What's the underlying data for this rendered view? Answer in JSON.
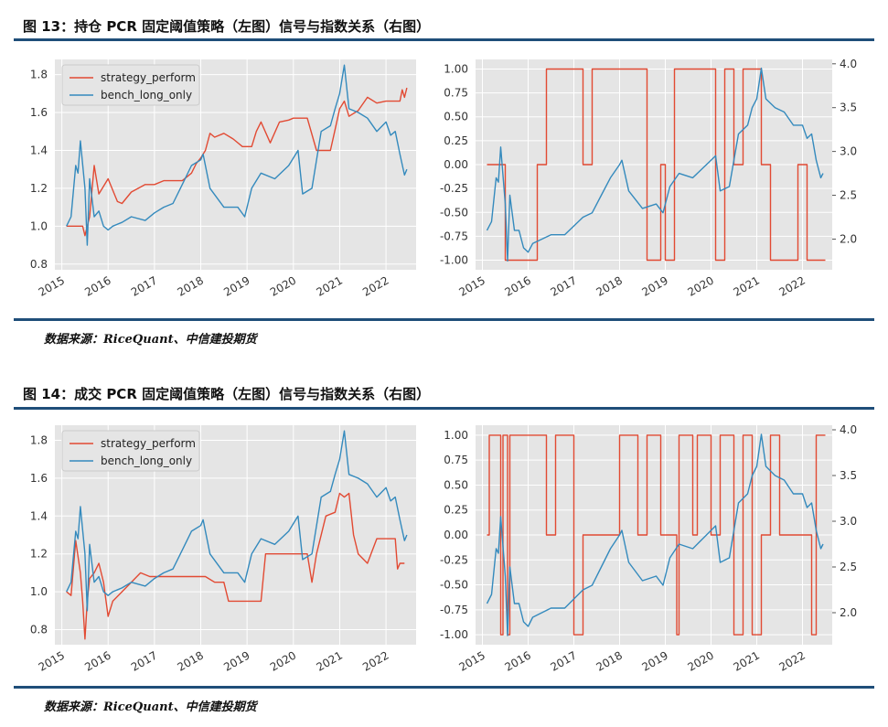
{
  "figures": [
    {
      "title": "图 13：持仓 PCR 固定阈值策略（左图）信号与指数关系（右图）",
      "source": "数据来源：RiceQuant、中信建投期货"
    },
    {
      "title": "图 14：成交 PCR 固定阈值策略（左图）信号与指数关系（右图）",
      "source": "数据来源：RiceQuant、中信建投期货"
    }
  ],
  "colors": {
    "strategy": "#e24a33",
    "bench": "#348abd",
    "signal": "#e24a33",
    "index": "#348abd",
    "panel": "#e5e5e5",
    "rule": "#1f4e79"
  },
  "chart_data": [
    {
      "type": "line",
      "xlabel": "",
      "ylabel": "",
      "xlim": [
        2014.85,
        2022.65
      ],
      "ylim": [
        0.77,
        1.88
      ],
      "xticks": [
        "2015",
        "2016",
        "2017",
        "2018",
        "2019",
        "2020",
        "2021",
        "2022"
      ],
      "yticks": [
        "0.8",
        "1.0",
        "1.2",
        "1.4",
        "1.6",
        "1.8"
      ],
      "grid": true,
      "legend": "top-left",
      "series": [
        {
          "name": "strategy_perform",
          "x": [
            2015.1,
            2015.2,
            2015.3,
            2015.4,
            2015.45,
            2015.5,
            2015.55,
            2015.6,
            2015.7,
            2015.8,
            2016.0,
            2016.2,
            2016.3,
            2016.5,
            2016.8,
            2017.0,
            2017.2,
            2017.4,
            2017.6,
            2017.8,
            2017.9,
            2018.0,
            2018.1,
            2018.2,
            2018.3,
            2018.5,
            2018.7,
            2018.9,
            2019.0,
            2019.1,
            2019.2,
            2019.3,
            2019.5,
            2019.7,
            2019.9,
            2020.0,
            2020.2,
            2020.3,
            2020.5,
            2020.8,
            2020.9,
            2021.0,
            2021.1,
            2021.2,
            2021.4,
            2021.6,
            2021.8,
            2022.0,
            2022.2,
            2022.3,
            2022.35,
            2022.4,
            2022.45
          ],
          "y": [
            1.0,
            1.0,
            1.0,
            1.0,
            1.0,
            0.95,
            1.0,
            1.05,
            1.32,
            1.17,
            1.25,
            1.13,
            1.12,
            1.18,
            1.22,
            1.22,
            1.24,
            1.24,
            1.24,
            1.28,
            1.33,
            1.36,
            1.4,
            1.49,
            1.47,
            1.49,
            1.46,
            1.42,
            1.42,
            1.42,
            1.5,
            1.55,
            1.44,
            1.55,
            1.56,
            1.57,
            1.57,
            1.57,
            1.4,
            1.4,
            1.51,
            1.62,
            1.66,
            1.58,
            1.61,
            1.68,
            1.65,
            1.66,
            1.66,
            1.66,
            1.72,
            1.68,
            1.73
          ]
        },
        {
          "name": "bench_long_only",
          "x": [
            2015.1,
            2015.2,
            2015.3,
            2015.35,
            2015.4,
            2015.5,
            2015.55,
            2015.6,
            2015.7,
            2015.8,
            2015.9,
            2016.0,
            2016.1,
            2016.3,
            2016.5,
            2016.8,
            2017.0,
            2017.2,
            2017.4,
            2017.6,
            2017.8,
            2018.0,
            2018.05,
            2018.2,
            2018.5,
            2018.8,
            2018.95,
            2019.1,
            2019.3,
            2019.6,
            2019.9,
            2020.1,
            2020.2,
            2020.4,
            2020.6,
            2020.8,
            2020.9,
            2021.0,
            2021.1,
            2021.2,
            2021.4,
            2021.6,
            2021.8,
            2022.0,
            2022.1,
            2022.2,
            2022.3,
            2022.4,
            2022.45
          ],
          "y": [
            1.0,
            1.05,
            1.32,
            1.28,
            1.45,
            1.2,
            0.9,
            1.25,
            1.05,
            1.08,
            1.0,
            0.98,
            1.0,
            1.02,
            1.05,
            1.03,
            1.07,
            1.1,
            1.12,
            1.22,
            1.32,
            1.35,
            1.38,
            1.2,
            1.1,
            1.1,
            1.05,
            1.2,
            1.28,
            1.25,
            1.32,
            1.4,
            1.17,
            1.2,
            1.5,
            1.53,
            1.62,
            1.7,
            1.85,
            1.62,
            1.6,
            1.57,
            1.5,
            1.55,
            1.48,
            1.5,
            1.38,
            1.27,
            1.3
          ]
        }
      ]
    },
    {
      "type": "line",
      "xlabel": "",
      "ylabel": "",
      "xlim": [
        2014.85,
        2022.65
      ],
      "ylim_left": [
        -1.1,
        1.1
      ],
      "ylim_right": [
        1.65,
        4.05
      ],
      "xticks": [
        "2015",
        "2016",
        "2017",
        "2018",
        "2019",
        "2020",
        "2021",
        "2022"
      ],
      "yticks_left": [
        "1.00",
        "0.75",
        "0.50",
        "0.25",
        "0.00",
        "-0.25",
        "-0.50",
        "-0.75",
        "-1.00"
      ],
      "yticks_right": [
        "4.0",
        "3.5",
        "3.0",
        "2.5",
        "2.0"
      ],
      "grid": true,
      "legend": "none",
      "series": [
        {
          "axis": "left",
          "x": [
            2015.1,
            2015.2,
            2015.4,
            2015.5,
            2015.6,
            2015.8,
            2016.0,
            2016.1,
            2016.2,
            2016.4,
            2016.6,
            2016.8,
            2017.0,
            2017.2,
            2017.4,
            2017.6,
            2017.8,
            2018.0,
            2018.2,
            2018.4,
            2018.6,
            2018.9,
            2019.0,
            2019.2,
            2019.4,
            2019.6,
            2019.8,
            2020.0,
            2020.1,
            2020.3,
            2020.5,
            2020.7,
            2020.9,
            2021.1,
            2021.3,
            2021.5,
            2021.7,
            2021.9,
            2022.1,
            2022.3,
            2022.5
          ],
          "y": [
            0.0,
            0.0,
            0.0,
            -1.0,
            -1.0,
            -1.0,
            -1.0,
            -1.0,
            0.0,
            1.0,
            1.0,
            1.0,
            1.0,
            0.0,
            1.0,
            1.0,
            1.0,
            1.0,
            1.0,
            1.0,
            -1.0,
            0.0,
            -1.0,
            1.0,
            1.0,
            1.0,
            1.0,
            1.0,
            -1.0,
            1.0,
            0.0,
            1.0,
            1.0,
            0.0,
            -1.0,
            -1.0,
            -1.0,
            0.0,
            -1.0,
            -1.0,
            -1.0
          ]
        },
        {
          "axis": "right",
          "x": [
            2015.1,
            2015.2,
            2015.3,
            2015.35,
            2015.4,
            2015.5,
            2015.55,
            2015.6,
            2015.7,
            2015.8,
            2015.9,
            2016.0,
            2016.1,
            2016.3,
            2016.5,
            2016.8,
            2017.0,
            2017.2,
            2017.4,
            2017.6,
            2017.8,
            2018.0,
            2018.05,
            2018.2,
            2018.5,
            2018.8,
            2018.95,
            2019.1,
            2019.3,
            2019.6,
            2019.9,
            2020.1,
            2020.2,
            2020.4,
            2020.6,
            2020.8,
            2020.9,
            2021.0,
            2021.1,
            2021.2,
            2021.4,
            2021.6,
            2021.8,
            2022.0,
            2022.1,
            2022.2,
            2022.3,
            2022.4,
            2022.45
          ],
          "y": [
            2.1,
            2.2,
            2.7,
            2.65,
            3.05,
            2.4,
            1.75,
            2.5,
            2.1,
            2.1,
            1.9,
            1.85,
            1.95,
            2.0,
            2.05,
            2.05,
            2.15,
            2.25,
            2.3,
            2.5,
            2.7,
            2.85,
            2.9,
            2.55,
            2.35,
            2.4,
            2.3,
            2.6,
            2.75,
            2.7,
            2.85,
            2.95,
            2.55,
            2.6,
            3.2,
            3.3,
            3.5,
            3.6,
            3.95,
            3.6,
            3.5,
            3.45,
            3.3,
            3.3,
            3.15,
            3.2,
            2.9,
            2.7,
            2.75
          ]
        }
      ]
    },
    {
      "type": "line",
      "xlabel": "",
      "ylabel": "",
      "xlim": [
        2014.85,
        2022.65
      ],
      "ylim": [
        0.72,
        1.88
      ],
      "xticks": [
        "2015",
        "2016",
        "2017",
        "2018",
        "2019",
        "2020",
        "2021",
        "2022"
      ],
      "yticks": [
        "0.8",
        "1.0",
        "1.2",
        "1.4",
        "1.6",
        "1.8"
      ],
      "grid": true,
      "legend": "top-left",
      "series": [
        {
          "name": "strategy_perform",
          "x": [
            2015.1,
            2015.2,
            2015.3,
            2015.4,
            2015.45,
            2015.5,
            2015.55,
            2015.6,
            2015.7,
            2015.8,
            2015.9,
            2016.0,
            2016.1,
            2016.3,
            2016.5,
            2016.7,
            2016.9,
            2017.1,
            2017.5,
            2017.9,
            2018.1,
            2018.3,
            2018.5,
            2018.6,
            2018.9,
            2019.1,
            2019.3,
            2019.4,
            2019.6,
            2019.8,
            2020.0,
            2020.2,
            2020.3,
            2020.4,
            2020.5,
            2020.7,
            2020.9,
            2021.0,
            2021.1,
            2021.2,
            2021.3,
            2021.4,
            2021.6,
            2021.8,
            2022.1,
            2022.2,
            2022.25,
            2022.3,
            2022.4
          ],
          "y": [
            1.0,
            0.98,
            1.27,
            1.1,
            0.95,
            0.75,
            0.95,
            1.07,
            1.1,
            1.15,
            1.05,
            0.87,
            0.95,
            1.0,
            1.05,
            1.1,
            1.08,
            1.08,
            1.08,
            1.08,
            1.08,
            1.05,
            1.05,
            0.95,
            0.95,
            0.95,
            0.95,
            1.2,
            1.2,
            1.2,
            1.2,
            1.2,
            1.2,
            1.05,
            1.2,
            1.4,
            1.42,
            1.52,
            1.5,
            1.52,
            1.3,
            1.2,
            1.15,
            1.28,
            1.28,
            1.28,
            1.12,
            1.15,
            1.15
          ]
        },
        {
          "name": "bench_long_only",
          "x": [
            2015.1,
            2015.2,
            2015.3,
            2015.35,
            2015.4,
            2015.5,
            2015.55,
            2015.6,
            2015.7,
            2015.8,
            2015.9,
            2016.0,
            2016.1,
            2016.3,
            2016.5,
            2016.8,
            2017.0,
            2017.2,
            2017.4,
            2017.6,
            2017.8,
            2018.0,
            2018.05,
            2018.2,
            2018.5,
            2018.8,
            2018.95,
            2019.1,
            2019.3,
            2019.6,
            2019.9,
            2020.1,
            2020.2,
            2020.4,
            2020.6,
            2020.8,
            2020.9,
            2021.0,
            2021.1,
            2021.2,
            2021.4,
            2021.6,
            2021.8,
            2022.0,
            2022.1,
            2022.2,
            2022.3,
            2022.4,
            2022.45
          ],
          "y": [
            1.0,
            1.05,
            1.32,
            1.28,
            1.45,
            1.2,
            0.9,
            1.25,
            1.05,
            1.08,
            1.0,
            0.98,
            1.0,
            1.02,
            1.05,
            1.03,
            1.07,
            1.1,
            1.12,
            1.22,
            1.32,
            1.35,
            1.38,
            1.2,
            1.1,
            1.1,
            1.05,
            1.2,
            1.28,
            1.25,
            1.32,
            1.4,
            1.17,
            1.2,
            1.5,
            1.53,
            1.62,
            1.7,
            1.85,
            1.62,
            1.6,
            1.57,
            1.5,
            1.55,
            1.48,
            1.5,
            1.38,
            1.27,
            1.3
          ]
        }
      ]
    },
    {
      "type": "line",
      "xlabel": "",
      "ylabel": "",
      "xlim": [
        2014.85,
        2022.65
      ],
      "ylim_left": [
        -1.1,
        1.1
      ],
      "ylim_right": [
        1.65,
        4.05
      ],
      "xticks": [
        "2015",
        "2016",
        "2017",
        "2018",
        "2019",
        "2020",
        "2021",
        "2022"
      ],
      "yticks_left": [
        "1.00",
        "0.75",
        "0.50",
        "0.25",
        "0.00",
        "-0.25",
        "-0.50",
        "-0.75",
        "-1.00"
      ],
      "yticks_right": [
        "4.0",
        "3.5",
        "3.0",
        "2.5",
        "2.0"
      ],
      "grid": true,
      "legend": "none",
      "series": [
        {
          "axis": "left",
          "x": [
            2015.1,
            2015.15,
            2015.35,
            2015.4,
            2015.45,
            2015.55,
            2015.6,
            2015.7,
            2015.8,
            2016.0,
            2016.2,
            2016.4,
            2016.6,
            2016.8,
            2016.9,
            2017.0,
            2017.2,
            2017.3,
            2017.5,
            2017.6,
            2017.8,
            2018.0,
            2018.2,
            2018.4,
            2018.6,
            2018.8,
            2018.9,
            2019.2,
            2019.25,
            2019.3,
            2019.4,
            2019.6,
            2019.7,
            2019.8,
            2020.0,
            2020.2,
            2020.4,
            2020.5,
            2020.7,
            2020.9,
            2021.1,
            2021.3,
            2021.5,
            2021.7,
            2021.9,
            2022.1,
            2022.2,
            2022.3,
            2022.5
          ],
          "y": [
            0.0,
            1.0,
            1.0,
            -1.0,
            1.0,
            -1.0,
            1.0,
            1.0,
            1.0,
            1.0,
            1.0,
            0.0,
            1.0,
            1.0,
            1.0,
            -1.0,
            0.0,
            0.0,
            0.0,
            0.0,
            0.0,
            1.0,
            1.0,
            0.0,
            1.0,
            1.0,
            0.0,
            0.0,
            -1.0,
            1.0,
            1.0,
            0.0,
            1.0,
            1.0,
            0.0,
            1.0,
            1.0,
            -1.0,
            1.0,
            -1.0,
            0.0,
            1.0,
            0.0,
            0.0,
            0.0,
            0.0,
            -1.0,
            1.0,
            1.0
          ]
        },
        {
          "axis": "right",
          "x": [
            2015.1,
            2015.2,
            2015.3,
            2015.35,
            2015.4,
            2015.5,
            2015.55,
            2015.6,
            2015.7,
            2015.8,
            2015.9,
            2016.0,
            2016.1,
            2016.3,
            2016.5,
            2016.8,
            2017.0,
            2017.2,
            2017.4,
            2017.6,
            2017.8,
            2018.0,
            2018.05,
            2018.2,
            2018.5,
            2018.8,
            2018.95,
            2019.1,
            2019.3,
            2019.6,
            2019.9,
            2020.1,
            2020.2,
            2020.4,
            2020.6,
            2020.8,
            2020.9,
            2021.0,
            2021.1,
            2021.2,
            2021.4,
            2021.6,
            2021.8,
            2022.0,
            2022.1,
            2022.2,
            2022.3,
            2022.4,
            2022.45
          ],
          "y": [
            2.1,
            2.2,
            2.7,
            2.65,
            3.05,
            2.4,
            1.75,
            2.5,
            2.1,
            2.1,
            1.9,
            1.85,
            1.95,
            2.0,
            2.05,
            2.05,
            2.15,
            2.25,
            2.3,
            2.5,
            2.7,
            2.85,
            2.9,
            2.55,
            2.35,
            2.4,
            2.3,
            2.6,
            2.75,
            2.7,
            2.85,
            2.95,
            2.55,
            2.6,
            3.2,
            3.3,
            3.5,
            3.6,
            3.95,
            3.6,
            3.5,
            3.45,
            3.3,
            3.3,
            3.15,
            3.2,
            2.9,
            2.7,
            2.75
          ]
        }
      ]
    }
  ]
}
